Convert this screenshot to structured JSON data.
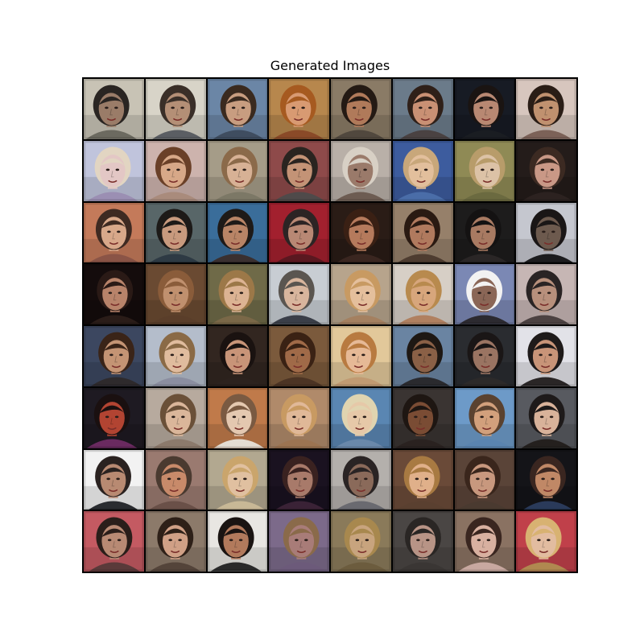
{
  "title": "Generated Images",
  "image_grid": {
    "rows": 8,
    "cols": 8,
    "subject": "generated face portraits",
    "tiles": [
      {
        "bg": "#c8c3b5",
        "skin": "#9a7c68",
        "hair": "#2a2522",
        "shirt": "#6c6a60"
      },
      {
        "bg": "#d8d4c8",
        "skin": "#b48f76",
        "hair": "#3a2f28",
        "shirt": "#5b5e63"
      },
      {
        "bg": "#6b86a6",
        "skin": "#c89d80",
        "hair": "#3a2a1f",
        "shirt": "#3f4d60"
      },
      {
        "bg": "#b7874d",
        "skin": "#d89a72",
        "hair": "#a65a20",
        "shirt": "#8a4a28"
      },
      {
        "bg": "#8a7b66",
        "skin": "#b07a5a",
        "hair": "#241a14",
        "shirt": "#51483e"
      },
      {
        "bg": "#6b7b8a",
        "skin": "#c99074",
        "hair": "#2f2019",
        "shirt": "#4a4242"
      },
      {
        "bg": "#171b24",
        "skin": "#b88872",
        "hair": "#1a1412",
        "shirt": "#1a1d22"
      },
      {
        "bg": "#d7c6be",
        "skin": "#c0916f",
        "hair": "#2a1d16",
        "shirt": "#7c6258"
      },
      {
        "bg": "#c0c4dc",
        "skin": "#e3c7c5",
        "hair": "#e2d5c2",
        "shirt": "#9b8fb3"
      },
      {
        "bg": "#cdb3ad",
        "skin": "#d7a888",
        "hair": "#6a4028",
        "shirt": "#a98b7c"
      },
      {
        "bg": "#a59c88",
        "skin": "#d7b195",
        "hair": "#8b6a4a",
        "shirt": "#7c7866"
      },
      {
        "bg": "#8e4a4a",
        "skin": "#c39376",
        "hair": "#2a2420",
        "shirt": "#4f4a4a"
      },
      {
        "bg": "#b9b0a8",
        "skin": "#9a7a6a",
        "hair": "#d8d0c5",
        "shirt": "#6d5c52"
      },
      {
        "bg": "#3d5c9e",
        "skin": "#e2bf9c",
        "hair": "#c8a77a",
        "shirt": "#4a6da8"
      },
      {
        "bg": "#8f8a55",
        "skin": "#dcc2a6",
        "hair": "#b89c6a",
        "shirt": "#6b6a40"
      },
      {
        "bg": "#241c1a",
        "skin": "#c99886",
        "hair": "#3c2a22",
        "shirt": "#2c2220"
      },
      {
        "bg": "#c47a5a",
        "skin": "#d8a88a",
        "hair": "#3e2a22",
        "shirt": "#8a5446"
      },
      {
        "bg": "#586668",
        "skin": "#c89a7e",
        "hair": "#1d1a18",
        "shirt": "#2e3a44"
      },
      {
        "bg": "#3a6d9a",
        "skin": "#b88466",
        "hair": "#1e1a18",
        "shirt": "#3a3030"
      },
      {
        "bg": "#a2202e",
        "skin": "#b88874",
        "hair": "#2c2424",
        "shirt": "#5a1820"
      },
      {
        "bg": "#2a1c16",
        "skin": "#b57a5c",
        "hair": "#3a2014",
        "shirt": "#3a2620"
      },
      {
        "bg": "#96806a",
        "skin": "#b07a5e",
        "hair": "#2a1a12",
        "shirt": "#4e3c30"
      },
      {
        "bg": "#1d1c1c",
        "skin": "#a87a62",
        "hair": "#141212",
        "shirt": "#2a2626"
      },
      {
        "bg": "#c5c7cf",
        "skin": "#6d5a4e",
        "hair": "#1a1616",
        "shirt": "#1c1c1e"
      },
      {
        "bg": "#140c0c",
        "skin": "#b8836a",
        "hair": "#2a1a16",
        "shirt": "#2a1c18"
      },
      {
        "bg": "#6a4a32",
        "skin": "#c0906e",
        "hair": "#8a5c3a",
        "shirt": "#5a3e2a"
      },
      {
        "bg": "#6f6a48",
        "skin": "#dcb393",
        "hair": "#9c7848",
        "shirt": "#7a6848"
      },
      {
        "bg": "#c8cdd3",
        "skin": "#d8b59d",
        "hair": "#5a5550",
        "shirt": "#3a3e48"
      },
      {
        "bg": "#b7a48c",
        "skin": "#e4bf9c",
        "hair": "#c89a62",
        "shirt": "#a48060"
      },
      {
        "bg": "#d7cfc6",
        "skin": "#d7a67c",
        "hair": "#b88a4e",
        "shirt": "#b08060"
      },
      {
        "bg": "#7b88b4",
        "skin": "#8a6656",
        "hair": "#f2f2f2",
        "shirt": "#2c2a30"
      },
      {
        "bg": "#c6b6b4",
        "skin": "#b8907c",
        "hair": "#2a2424",
        "shirt": "#4c4242"
      },
      {
        "bg": "#3c4760",
        "skin": "#c49474",
        "hair": "#3a2418",
        "shirt": "#2e2a2c"
      },
      {
        "bg": "#b4bdcb",
        "skin": "#e0bc9e",
        "hair": "#8a6a46",
        "shirt": "#8b8ea0"
      },
      {
        "bg": "#322620",
        "skin": "#c89478",
        "hair": "#1a1210",
        "shirt": "#2c221e"
      },
      {
        "bg": "#7b5a3c",
        "skin": "#a06a48",
        "hair": "#3a2214",
        "shirt": "#4c3424"
      },
      {
        "bg": "#e2c89a",
        "skin": "#e6b996",
        "hair": "#b87a40",
        "shirt": "#c09a72"
      },
      {
        "bg": "#6a84a2",
        "skin": "#8a6046",
        "hair": "#1e1814",
        "shirt": "#2a2a2e"
      },
      {
        "bg": "#2a2c30",
        "skin": "#9a7462",
        "hair": "#1a1616",
        "shirt": "#2c2a2a"
      },
      {
        "bg": "#e2e2e8",
        "skin": "#c89478",
        "hair": "#1e1a1a",
        "shirt": "#2a2626"
      },
      {
        "bg": "#1e1a22",
        "skin": "#b24432",
        "hair": "#1a1010",
        "shirt": "#6a2a60"
      },
      {
        "bg": "#b7aa9e",
        "skin": "#dab69a",
        "hair": "#6a5038",
        "shirt": "#8c7a6c"
      },
      {
        "bg": "#c07a4a",
        "skin": "#e4c8b0",
        "hair": "#7a5a42",
        "shirt": "#e4dcd2"
      },
      {
        "bg": "#b08a6a",
        "skin": "#e0b898",
        "hair": "#c89a62",
        "shirt": "#9c7452"
      },
      {
        "bg": "#5a86b2",
        "skin": "#e6c8a8",
        "hair": "#e0d4b0",
        "shirt": "#6a88aa"
      },
      {
        "bg": "#3a3432",
        "skin": "#7a4c34",
        "hair": "#1e1612",
        "shirt": "#2a2220"
      },
      {
        "bg": "#6d9ac8",
        "skin": "#d2a07c",
        "hair": "#5a4230",
        "shirt": "#5a84b0"
      },
      {
        "bg": "#585a60",
        "skin": "#d8b29a",
        "hair": "#1e1a1a",
        "shirt": "#24201e"
      },
      {
        "bg": "#f2f2f2",
        "skin": "#b88a72",
        "hair": "#2a2220",
        "shirt": "#2a2c30"
      },
      {
        "bg": "#9a7a70",
        "skin": "#c88a6a",
        "hair": "#4a3a30",
        "shirt": "#6a5048"
      },
      {
        "bg": "#b2a890",
        "skin": "#e0c0a0",
        "hair": "#caa56c",
        "shirt": "#c8b896"
      },
      {
        "bg": "#1a1220",
        "skin": "#a87a6a",
        "hair": "#3a2220",
        "shirt": "#3a2236"
      },
      {
        "bg": "#b4b0ac",
        "skin": "#8a6a5a",
        "hair": "#2a2424",
        "shirt": "#6a6a70"
      },
      {
        "bg": "#6a4a38",
        "skin": "#e0b08a",
        "hair": "#a87a42",
        "shirt": "#5a4030"
      },
      {
        "bg": "#5a4438",
        "skin": "#c8987e",
        "hair": "#3a261c",
        "shirt": "#4a3a30"
      },
      {
        "bg": "#141418",
        "skin": "#c08866",
        "hair": "#3a2620",
        "shirt": "#2a3a5a"
      },
      {
        "bg": "#c45a62",
        "skin": "#b88a74",
        "hair": "#2a1e1a",
        "shirt": "#5a3a3a"
      },
      {
        "bg": "#8c7a6a",
        "skin": "#d0a086",
        "hair": "#2e2018",
        "shirt": "#54443a"
      },
      {
        "bg": "#e8e6e2",
        "skin": "#b27a5c",
        "hair": "#1a1412",
        "shirt": "#2a2a2a"
      },
      {
        "bg": "#7c6a8a",
        "skin": "#a87c78",
        "hair": "#8a6a4a",
        "shirt": "#6c5a7a"
      },
      {
        "bg": "#8a7a5a",
        "skin": "#c8a47e",
        "hair": "#a8884e",
        "shirt": "#6c5c3e"
      },
      {
        "bg": "#4a4644",
        "skin": "#b89486",
        "hair": "#2a2624",
        "shirt": "#3a3634"
      },
      {
        "bg": "#8a7262",
        "skin": "#d8b0a0",
        "hair": "#3a2620",
        "shirt": "#c8a8a0"
      },
      {
        "bg": "#c0404a",
        "skin": "#e2bca0",
        "hair": "#d8b272",
        "shirt": "#b08850"
      }
    ]
  }
}
